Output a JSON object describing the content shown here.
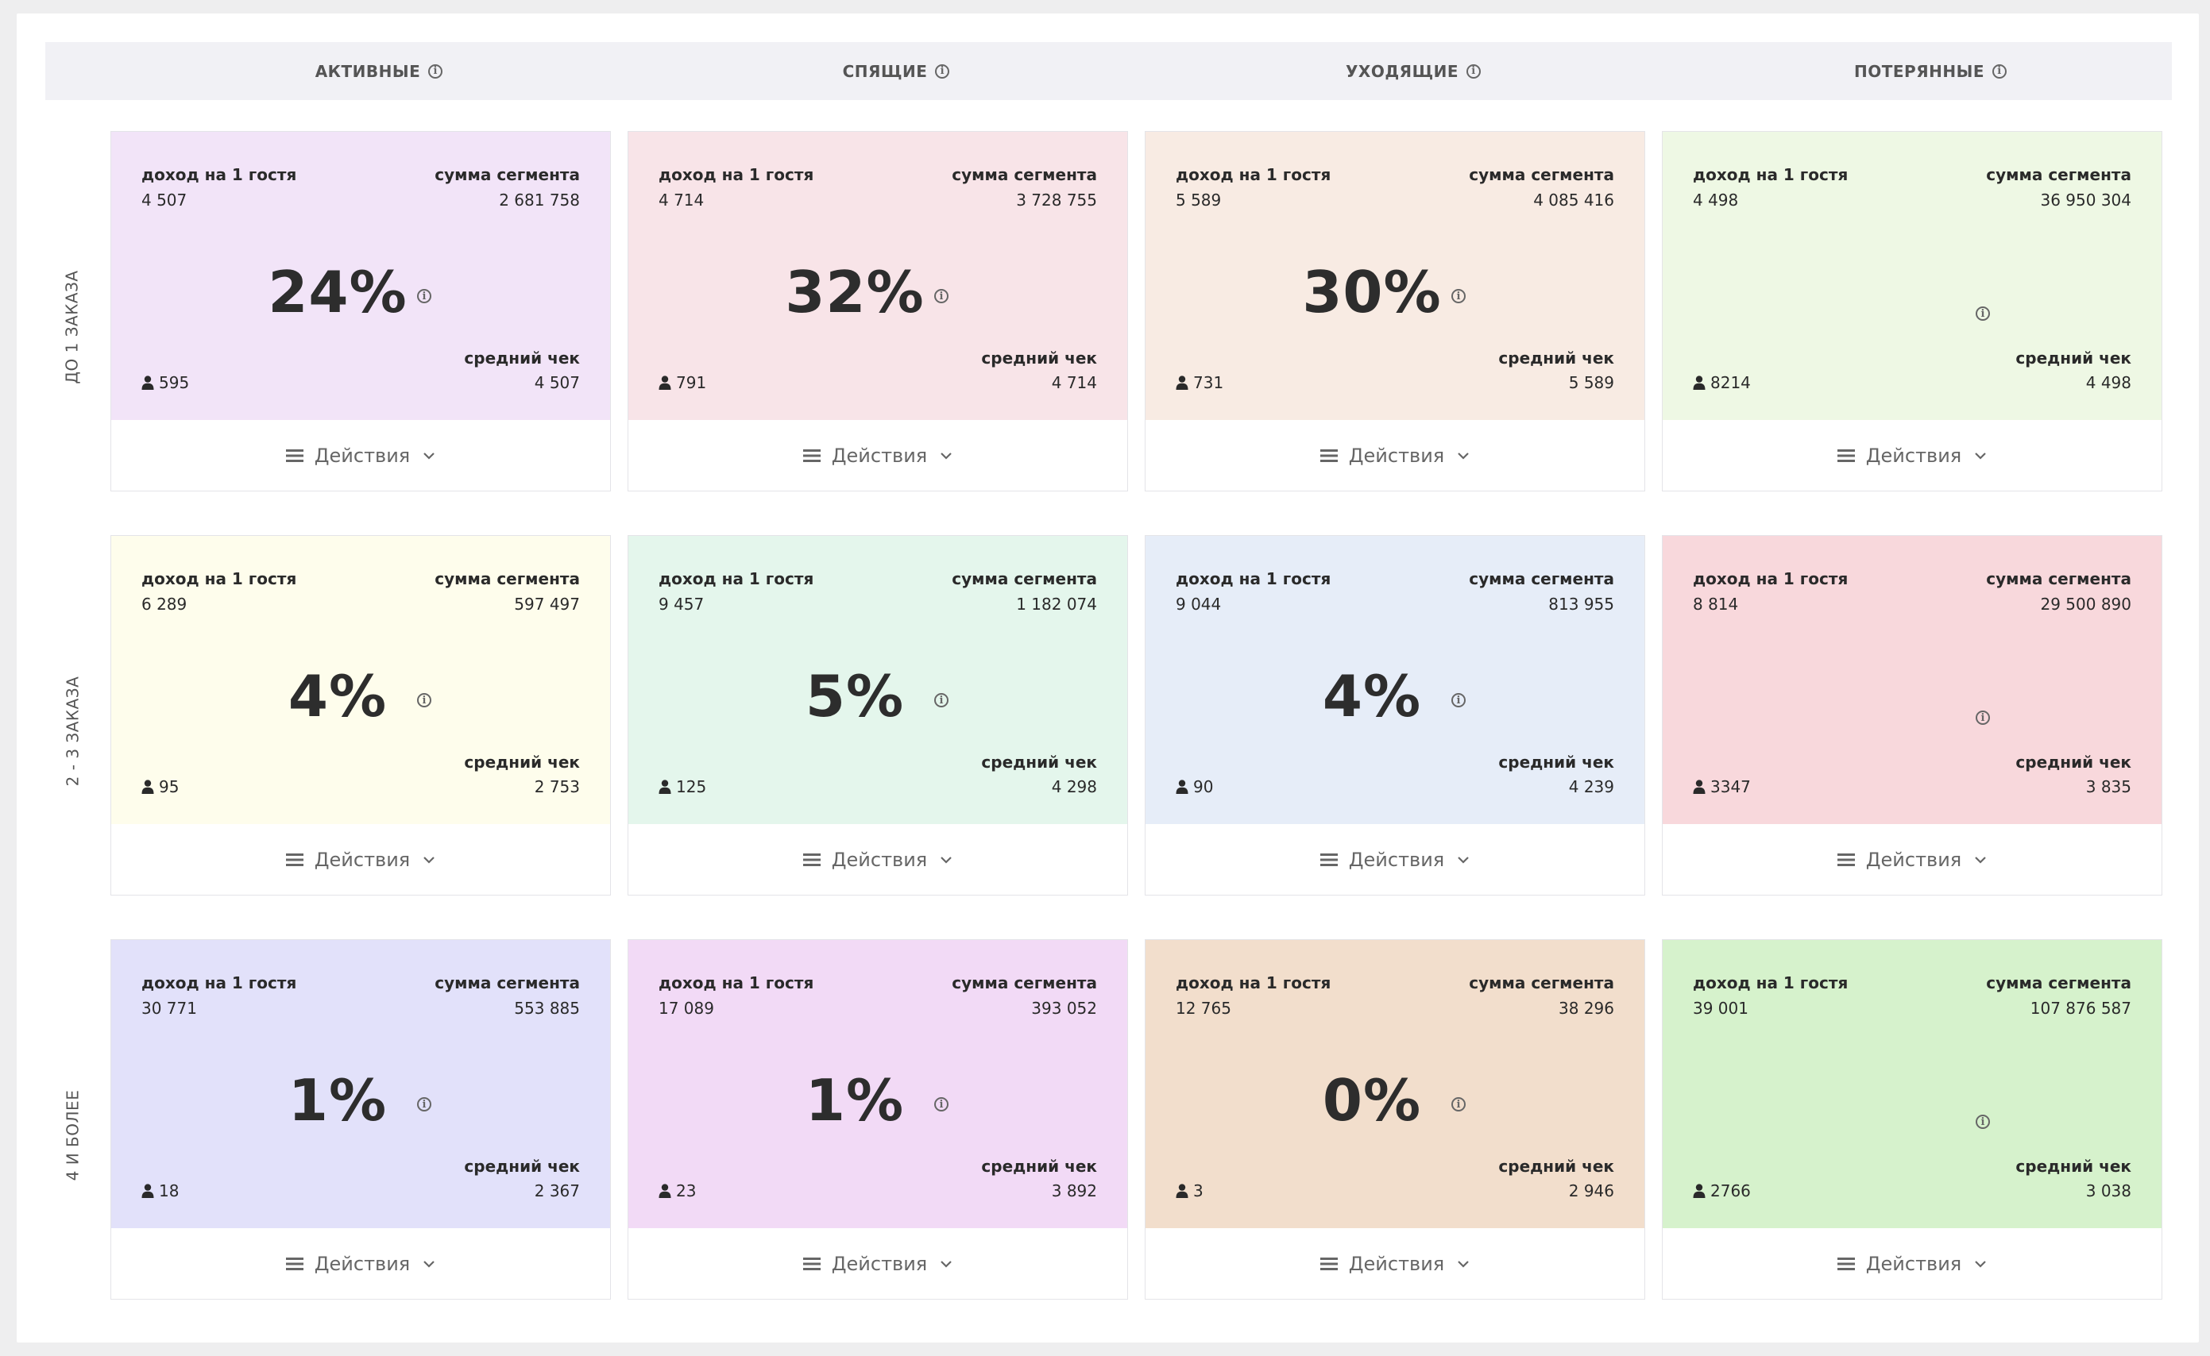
{
  "columns": [
    {
      "label": "АКТИВНЫЕ"
    },
    {
      "label": "СПЯЩИЕ"
    },
    {
      "label": "УХОДЯЩИЕ"
    },
    {
      "label": "ПОТЕРЯННЫЕ"
    }
  ],
  "rows": [
    {
      "label": "ДО 1 ЗАКАЗА"
    },
    {
      "label": "2 - 3 ЗАКАЗА"
    },
    {
      "label": "4 И БОЛЕЕ"
    }
  ],
  "labels": {
    "income_per_guest": "доход на 1 гостя",
    "segment_sum": "сумма сегмента",
    "avg_check": "средний чек",
    "actions": "Действия",
    "info_glyph": "i"
  },
  "cards": [
    [
      {
        "income": "4 507",
        "sum": "2 681 758",
        "percent": "24%",
        "guests": "595",
        "avg": "4 507",
        "color": "#f2e4f8"
      },
      {
        "income": "4 714",
        "sum": "3 728 755",
        "percent": "32%",
        "guests": "791",
        "avg": "4 714",
        "color": "#f8e4e8"
      },
      {
        "income": "5 589",
        "sum": "4 085 416",
        "percent": "30%",
        "guests": "731",
        "avg": "5 589",
        "color": "#f8ebe3"
      },
      {
        "income": "4 498",
        "sum": "36 950 304",
        "percent": "",
        "guests": "8214",
        "avg": "4 498",
        "color": "#eef8e4"
      }
    ],
    [
      {
        "income": "6 289",
        "sum": "597 497",
        "percent": "4%",
        "guests": "95",
        "avg": "2 753",
        "color": "#fefdec"
      },
      {
        "income": "9 457",
        "sum": "1 182 074",
        "percent": "5%",
        "guests": "125",
        "avg": "4 298",
        "color": "#e4f6ec"
      },
      {
        "income": "9 044",
        "sum": "813 955",
        "percent": "4%",
        "guests": "90",
        "avg": "4 239",
        "color": "#e6edf8"
      },
      {
        "income": "8 814",
        "sum": "29 500 890",
        "percent": "",
        "guests": "3347",
        "avg": "3 835",
        "color": "#f8d8dc"
      }
    ],
    [
      {
        "income": "30 771",
        "sum": "553 885",
        "percent": "1%",
        "guests": "18",
        "avg": "2 367",
        "color": "#e2e1fa"
      },
      {
        "income": "17 089",
        "sum": "393 052",
        "percent": "1%",
        "guests": "23",
        "avg": "3 892",
        "color": "#f2daf6"
      },
      {
        "income": "12 765",
        "sum": "38 296",
        "percent": "0%",
        "guests": "3",
        "avg": "2 946",
        "color": "#f2decc"
      },
      {
        "income": "39 001",
        "sum": "107 876 587",
        "percent": "",
        "guests": "2766",
        "avg": "3 038",
        "color": "#d6f2cc"
      }
    ]
  ]
}
